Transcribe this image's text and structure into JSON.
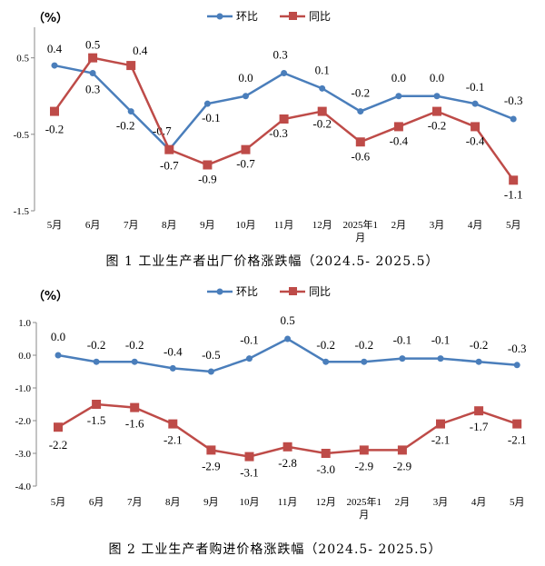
{
  "chart_data": [
    {
      "type": "line",
      "unit_label": "（%）",
      "caption": "图 1  工业生产者出厂价格涨跌幅（2024.5- 2025.5）",
      "categories": [
        "5月",
        "6月",
        "7月",
        "8月",
        "9月",
        "10月",
        "11月",
        "12月",
        "2025年1月",
        "2月",
        "3月",
        "4月",
        "5月"
      ],
      "y_ticks": [
        "0.5",
        "-0.5",
        "-1.5"
      ],
      "ylim": [
        -1.5,
        0.9
      ],
      "grid": false,
      "legend_position": "top-center",
      "series": [
        {
          "name": "环比",
          "color": "#4a7ebb",
          "marker": "circle",
          "values": [
            0.4,
            0.3,
            -0.2,
            -0.7,
            -0.1,
            0.0,
            0.3,
            0.1,
            -0.2,
            0.0,
            0.0,
            -0.1,
            -0.3
          ],
          "labels": [
            "0.4",
            "0.3",
            "-0.2",
            "-0.7",
            "-0.1",
            "0.0",
            "0.3",
            "0.1",
            "-0.2",
            "0.0",
            "0.0",
            "-0.1",
            "-0.3"
          ]
        },
        {
          "name": "同比",
          "color": "#be4b48",
          "marker": "square",
          "values": [
            -0.2,
            0.5,
            0.4,
            -0.7,
            -0.9,
            -0.7,
            -0.3,
            -0.2,
            -0.6,
            -0.4,
            -0.2,
            -0.4,
            -1.1
          ],
          "labels": [
            "-0.2",
            "0.5",
            "0.4",
            "-0.7",
            "-0.9",
            "-0.7",
            "-0.3",
            "-0.2",
            "-0.6",
            "-0.4",
            "-0.2",
            "-0.4",
            "-1.1"
          ]
        }
      ]
    },
    {
      "type": "line",
      "unit_label": "（%）",
      "caption": "图 2  工业生产者购进价格涨跌幅（2024.5- 2025.5）",
      "categories": [
        "5月",
        "6月",
        "7月",
        "8月",
        "9月",
        "10月",
        "11月",
        "12月",
        "2025年1月",
        "2月",
        "3月",
        "4月",
        "5月"
      ],
      "y_ticks": [
        "1.0",
        "0.0",
        "-1.0",
        "-2.0",
        "-3.0",
        "-4.0"
      ],
      "ylim": [
        -4.0,
        1.0
      ],
      "grid": false,
      "legend_position": "top-center",
      "series": [
        {
          "name": "环比",
          "color": "#4a7ebb",
          "marker": "circle",
          "values": [
            0.0,
            -0.2,
            -0.2,
            -0.4,
            -0.5,
            -0.1,
            0.5,
            -0.2,
            -0.2,
            -0.1,
            -0.1,
            -0.2,
            -0.3
          ],
          "labels": [
            "0.0",
            "-0.2",
            "-0.2",
            "-0.4",
            "-0.5",
            "-0.1",
            "0.5",
            "-0.2",
            "-0.2",
            "-0.1",
            "-0.1",
            "-0.2",
            "-0.3"
          ]
        },
        {
          "name": "同比",
          "color": "#be4b48",
          "marker": "square",
          "values": [
            -2.2,
            -1.5,
            -1.6,
            -2.1,
            -2.9,
            -3.1,
            -2.8,
            -3.0,
            -2.9,
            -2.9,
            -2.1,
            -1.7,
            -2.1
          ],
          "labels": [
            "-2.2",
            "-1.5",
            "-1.6",
            "-2.1",
            "-2.9",
            "-3.1",
            "-2.8",
            "-3.0",
            "-2.9",
            "-2.9",
            "-2.1",
            "-1.7",
            "-2.1"
          ]
        }
      ]
    }
  ]
}
